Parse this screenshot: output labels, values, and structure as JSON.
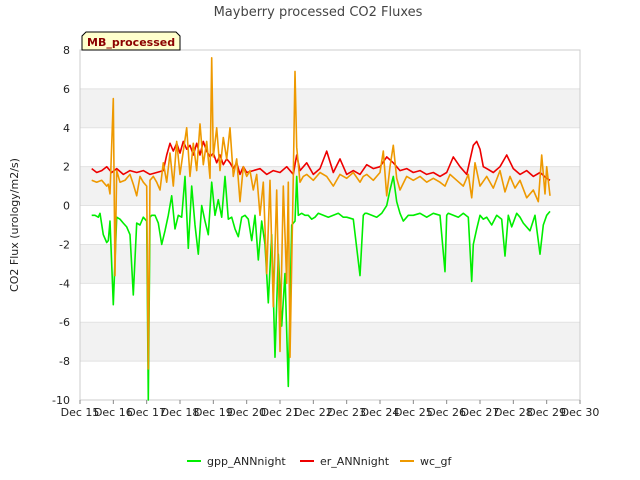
{
  "chart_data": {
    "type": "line",
    "title": "Mayberry processed CO2 Fluxes",
    "xlabel": "",
    "ylabel": "CO2 Flux (urology/m2/s)",
    "xlim": [
      15,
      30
    ],
    "ylim": [
      -10,
      8
    ],
    "xticks": [
      15,
      16,
      17,
      18,
      19,
      20,
      21,
      22,
      23,
      24,
      25,
      26,
      27,
      28,
      29,
      30
    ],
    "xtick_labels": [
      "Dec 15",
      "Dec 16",
      "Dec 17",
      "Dec 18",
      "Dec 19",
      "Dec 20",
      "Dec 21",
      "Dec 22",
      "Dec 23",
      "Dec 24",
      "Dec 25",
      "Dec 26",
      "Dec 27",
      "Dec 28",
      "Dec 29",
      "Dec 30"
    ],
    "yticks": [
      -10,
      -8,
      -6,
      -4,
      -2,
      0,
      2,
      4,
      6,
      8
    ],
    "ytick_labels": [
      "-10",
      "-8",
      "-6",
      "-4",
      "-2",
      "0",
      "2",
      "4",
      "6",
      "8"
    ],
    "grid": "horizontal bands",
    "legend_position": "bottom",
    "annotation": "MB_processed",
    "series": [
      {
        "name": "gpp_ANNnight",
        "color": "#00ee00",
        "x": [
          15.35,
          15.45,
          15.55,
          15.6,
          15.7,
          15.8,
          15.85,
          15.9,
          16.0,
          16.1,
          16.2,
          16.3,
          16.4,
          16.5,
          16.6,
          16.7,
          16.8,
          16.9,
          17.0,
          17.05,
          17.1,
          17.15,
          17.25,
          17.35,
          17.45,
          17.55,
          17.65,
          17.75,
          17.85,
          17.95,
          18.05,
          18.15,
          18.25,
          18.35,
          18.45,
          18.55,
          18.65,
          18.75,
          18.85,
          18.95,
          19.05,
          19.15,
          19.25,
          19.35,
          19.45,
          19.55,
          19.65,
          19.75,
          19.85,
          19.95,
          20.05,
          20.15,
          20.25,
          20.35,
          20.45,
          20.55,
          20.65,
          20.75,
          20.85,
          20.95,
          21.05,
          21.15,
          21.25,
          21.35,
          21.45,
          21.5,
          21.55,
          21.65,
          21.75,
          21.85,
          21.95,
          22.05,
          22.15,
          22.3,
          22.45,
          22.6,
          22.75,
          22.9,
          23.0,
          23.2,
          23.4,
          23.5,
          23.55,
          23.6,
          23.75,
          23.9,
          24.05,
          24.2,
          24.3,
          24.4,
          24.5,
          24.6,
          24.7,
          24.85,
          25.0,
          25.2,
          25.4,
          25.6,
          25.8,
          25.95,
          26.0,
          26.05,
          26.2,
          26.35,
          26.5,
          26.65,
          26.75,
          26.8,
          26.9,
          27.0,
          27.1,
          27.2,
          27.35,
          27.5,
          27.65,
          27.75,
          27.85,
          27.95,
          28.1,
          28.2,
          28.3,
          28.5,
          28.65,
          28.8,
          28.9,
          29.0,
          29.1
        ],
        "values": [
          -0.5,
          -0.5,
          -0.6,
          -0.4,
          -1.5,
          -1.9,
          -1.8,
          -0.8,
          -5.1,
          -0.6,
          -0.7,
          -0.9,
          -1.1,
          -1.5,
          -4.6,
          -0.9,
          -1.0,
          -0.6,
          -0.8,
          -10.0,
          -0.6,
          -0.5,
          -0.5,
          -0.9,
          -2.0,
          -1.3,
          -0.5,
          0.5,
          -1.2,
          -0.5,
          -0.6,
          1.5,
          -2.2,
          1.0,
          -1.0,
          -2.5,
          0.0,
          -0.8,
          -1.5,
          1.2,
          -0.5,
          0.3,
          -0.6,
          1.5,
          -0.7,
          -0.6,
          -1.2,
          -1.6,
          -0.6,
          -0.5,
          -0.7,
          -1.8,
          -0.5,
          -2.8,
          -0.8,
          -2.0,
          -5.0,
          -1.5,
          -7.8,
          -2.5,
          -6.2,
          -3.5,
          -9.3,
          -1.0,
          -0.8,
          1.5,
          -0.5,
          -0.4,
          -0.5,
          -0.5,
          -0.7,
          -0.6,
          -0.4,
          -0.5,
          -0.6,
          -0.5,
          -0.4,
          -0.6,
          -0.6,
          -0.7,
          -3.6,
          -0.5,
          -0.4,
          -0.4,
          -0.5,
          -0.6,
          -0.4,
          0.0,
          0.8,
          1.5,
          0.2,
          -0.4,
          -0.8,
          -0.5,
          -0.5,
          -0.4,
          -0.6,
          -0.4,
          -0.5,
          -3.4,
          -0.5,
          -0.4,
          -0.5,
          -0.6,
          -0.4,
          -0.6,
          -3.9,
          -2.0,
          -1.2,
          -0.5,
          -0.7,
          -0.6,
          -1.0,
          -0.5,
          -0.7,
          -2.6,
          -0.5,
          -1.1,
          -0.4,
          -0.6,
          -0.9,
          -1.3,
          -0.5,
          -2.5,
          -1.0,
          -0.5,
          -0.3
        ]
      },
      {
        "name": "er_ANNnight",
        "color": "#ee0000",
        "x": [
          15.35,
          15.5,
          15.65,
          15.8,
          15.95,
          16.1,
          16.3,
          16.5,
          16.7,
          16.9,
          17.1,
          17.3,
          17.5,
          17.6,
          17.7,
          17.8,
          17.9,
          18.0,
          18.1,
          18.2,
          18.3,
          18.4,
          18.5,
          18.6,
          18.7,
          18.8,
          18.9,
          19.0,
          19.1,
          19.2,
          19.3,
          19.4,
          19.5,
          19.6,
          19.7,
          19.8,
          19.9,
          20.0,
          20.2,
          20.4,
          20.6,
          20.8,
          21.0,
          21.2,
          21.4,
          21.5,
          21.6,
          21.8,
          22.0,
          22.2,
          22.4,
          22.6,
          22.8,
          23.0,
          23.2,
          23.4,
          23.6,
          23.8,
          24.0,
          24.2,
          24.4,
          24.6,
          24.8,
          25.0,
          25.2,
          25.4,
          25.6,
          25.8,
          26.0,
          26.2,
          26.4,
          26.6,
          26.8,
          26.9,
          27.0,
          27.1,
          27.2,
          27.4,
          27.6,
          27.8,
          28.0,
          28.2,
          28.4,
          28.6,
          28.8,
          29.0,
          29.1
        ],
        "values": [
          1.9,
          1.7,
          1.8,
          2.0,
          1.7,
          1.9,
          1.6,
          1.8,
          1.7,
          1.8,
          1.6,
          1.7,
          1.8,
          2.6,
          3.2,
          2.8,
          3.2,
          2.7,
          3.3,
          2.9,
          3.1,
          2.6,
          3.2,
          2.6,
          3.3,
          2.8,
          2.5,
          2.7,
          2.2,
          2.6,
          2.1,
          2.4,
          2.2,
          1.9,
          2.2,
          1.6,
          2.0,
          1.7,
          1.8,
          1.9,
          1.6,
          1.8,
          1.7,
          2.0,
          1.6,
          2.6,
          1.8,
          2.2,
          1.6,
          1.9,
          2.8,
          1.7,
          2.4,
          1.6,
          1.8,
          1.6,
          2.1,
          1.9,
          2.0,
          2.5,
          2.2,
          1.8,
          1.9,
          1.7,
          1.8,
          1.6,
          1.7,
          1.5,
          1.7,
          2.5,
          2.0,
          1.6,
          3.1,
          3.3,
          2.9,
          2.0,
          1.9,
          1.7,
          2.0,
          2.6,
          1.9,
          1.6,
          1.8,
          1.5,
          1.7,
          1.4,
          1.3
        ]
      },
      {
        "name": "wc_gf",
        "color": "#ee9900",
        "x": [
          15.35,
          15.5,
          15.65,
          15.8,
          15.85,
          15.9,
          16.0,
          16.05,
          16.1,
          16.2,
          16.35,
          16.5,
          16.6,
          16.7,
          16.8,
          16.9,
          17.0,
          17.05,
          17.1,
          17.2,
          17.3,
          17.4,
          17.5,
          17.6,
          17.7,
          17.8,
          17.9,
          18.0,
          18.1,
          18.2,
          18.3,
          18.4,
          18.5,
          18.6,
          18.7,
          18.8,
          18.9,
          18.95,
          19.0,
          19.1,
          19.2,
          19.3,
          19.4,
          19.5,
          19.6,
          19.7,
          19.8,
          19.9,
          20.0,
          20.1,
          20.2,
          20.3,
          20.4,
          20.5,
          20.6,
          20.7,
          20.8,
          20.9,
          21.0,
          21.1,
          21.2,
          21.25,
          21.3,
          21.4,
          21.45,
          21.5,
          21.6,
          21.7,
          21.8,
          22.0,
          22.2,
          22.4,
          22.6,
          22.8,
          23.0,
          23.2,
          23.4,
          23.5,
          23.6,
          23.8,
          24.0,
          24.1,
          24.2,
          24.3,
          24.4,
          24.5,
          24.6,
          24.8,
          25.0,
          25.2,
          25.4,
          25.6,
          25.8,
          25.95,
          26.1,
          26.3,
          26.5,
          26.65,
          26.75,
          26.85,
          27.0,
          27.2,
          27.4,
          27.6,
          27.75,
          27.9,
          28.05,
          28.2,
          28.4,
          28.6,
          28.75,
          28.85,
          28.95,
          29.0,
          29.1
        ],
        "values": [
          1.3,
          1.2,
          1.3,
          1.0,
          1.1,
          0.6,
          5.5,
          -3.6,
          1.8,
          1.2,
          1.3,
          1.6,
          1.1,
          0.5,
          1.5,
          1.2,
          1.0,
          -8.4,
          1.3,
          1.5,
          1.2,
          0.8,
          2.2,
          1.2,
          2.7,
          1.0,
          3.3,
          1.6,
          2.8,
          4.0,
          1.5,
          3.2,
          1.8,
          4.2,
          2.1,
          3.3,
          1.4,
          7.6,
          2.5,
          4.0,
          1.8,
          3.5,
          2.4,
          4.0,
          1.5,
          2.4,
          0.2,
          2.0,
          1.5,
          1.8,
          0.8,
          1.6,
          -0.5,
          1.2,
          -3.5,
          1.3,
          -5.2,
          0.8,
          -7.5,
          1.0,
          -4.0,
          1.2,
          -7.8,
          1.5,
          6.9,
          3.0,
          1.2,
          1.5,
          1.6,
          1.3,
          1.7,
          1.5,
          1.0,
          1.6,
          1.4,
          1.7,
          1.2,
          1.5,
          1.6,
          1.3,
          1.7,
          2.8,
          0.5,
          2.0,
          3.1,
          1.4,
          0.8,
          1.5,
          1.3,
          1.5,
          1.2,
          1.4,
          1.2,
          1.0,
          1.6,
          1.3,
          1.0,
          1.6,
          0.4,
          2.2,
          1.0,
          1.5,
          0.9,
          1.8,
          0.7,
          1.5,
          0.9,
          1.3,
          0.4,
          0.8,
          0.2,
          2.6,
          0.6,
          2.0,
          0.5
        ]
      }
    ]
  }
}
